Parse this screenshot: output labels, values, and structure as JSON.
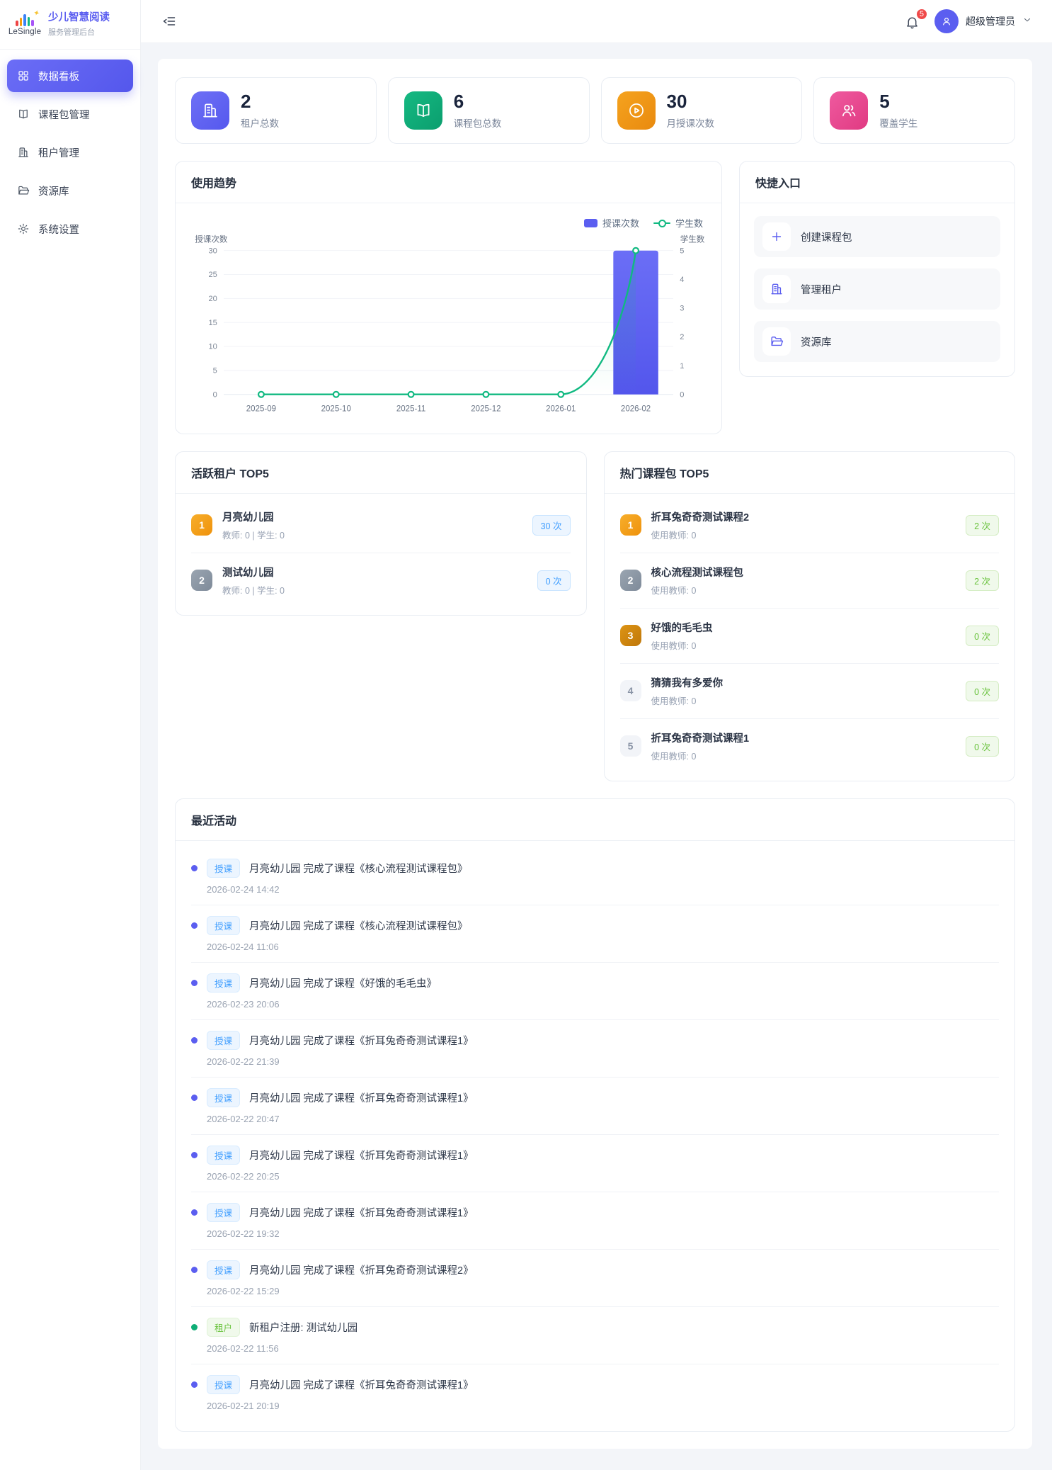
{
  "brand": {
    "logo_text": "LeSingle",
    "title": "少儿智慧阅读",
    "subtitle": "服务管理后台"
  },
  "header": {
    "notification_count": "5",
    "user_name": "超级管理员"
  },
  "sidebar": {
    "items": [
      {
        "label": "数据看板",
        "icon": "dashboard-icon",
        "active": true
      },
      {
        "label": "课程包管理",
        "icon": "book-icon",
        "active": false
      },
      {
        "label": "租户管理",
        "icon": "building-icon",
        "active": false
      },
      {
        "label": "资源库",
        "icon": "folder-icon",
        "active": false
      },
      {
        "label": "系统设置",
        "icon": "gear-icon",
        "active": false
      }
    ]
  },
  "stats": {
    "cards": [
      {
        "value": "2",
        "label": "租户总数",
        "icon": "building-icon",
        "color": "#5b5ef0"
      },
      {
        "value": "6",
        "label": "课程包总数",
        "icon": "book-icon",
        "color": "#10a873"
      },
      {
        "value": "30",
        "label": "月授课次数",
        "icon": "play-icon",
        "color": "#ef9712"
      },
      {
        "value": "5",
        "label": "覆盖学生",
        "icon": "users-icon",
        "color": "#e8488e"
      }
    ]
  },
  "usage_trend": {
    "title": "使用趋势",
    "legend": [
      "授课次数",
      "学生数"
    ]
  },
  "chart_data": {
    "type": "bar",
    "title": "使用趋势",
    "categories": [
      "2025-09",
      "2025-10",
      "2025-11",
      "2025-12",
      "2026-01",
      "2026-02"
    ],
    "series": [
      {
        "name": "授课次数",
        "type": "bar",
        "axis": "left",
        "values": [
          0,
          0,
          0,
          0,
          0,
          30
        ],
        "color": "#5b5ef0"
      },
      {
        "name": "学生数",
        "type": "line",
        "axis": "right",
        "values": [
          0,
          0,
          0,
          0,
          0,
          5
        ],
        "color": "#10b981"
      }
    ],
    "left_axis": {
      "name": "授课次数",
      "min": 0,
      "max": 30,
      "ticks": [
        0,
        5,
        10,
        15,
        20,
        25,
        30
      ]
    },
    "right_axis": {
      "name": "学生数",
      "min": 0,
      "max": 5,
      "ticks": [
        0,
        1,
        2,
        3,
        4,
        5
      ]
    },
    "grid": true,
    "legend_position": "top-right"
  },
  "quick_entry": {
    "title": "快捷入口",
    "items": [
      {
        "label": "创建课程包",
        "icon": "plus-icon"
      },
      {
        "label": "管理租户",
        "icon": "building-icon"
      },
      {
        "label": "资源库",
        "icon": "folder-icon"
      }
    ]
  },
  "active_tenants": {
    "title": "活跃租户 TOP5",
    "items": [
      {
        "rank": "1",
        "name": "月亮幼儿园",
        "meta": "教师: 0 | 学生: 0",
        "count": "30 次"
      },
      {
        "rank": "2",
        "name": "测试幼儿园",
        "meta": "教师: 0 | 学生: 0",
        "count": "0 次"
      }
    ]
  },
  "hot_packages": {
    "title": "热门课程包 TOP5",
    "items": [
      {
        "rank": "1",
        "name": "折耳兔奇奇测试课程2",
        "meta": "使用教师: 0",
        "count": "2 次"
      },
      {
        "rank": "2",
        "name": "核心流程测试课程包",
        "meta": "使用教师: 0",
        "count": "2 次"
      },
      {
        "rank": "3",
        "name": "好饿的毛毛虫",
        "meta": "使用教师: 0",
        "count": "0 次"
      },
      {
        "rank": "4",
        "name": "猜猜我有多爱你",
        "meta": "使用教师: 0",
        "count": "0 次"
      },
      {
        "rank": "5",
        "name": "折耳兔奇奇测试课程1",
        "meta": "使用教师: 0",
        "count": "0 次"
      }
    ]
  },
  "recent_activity": {
    "title": "最近活动",
    "items": [
      {
        "tag": "授课",
        "type": "lesson",
        "text": "月亮幼儿园 完成了课程《核心流程测试课程包》",
        "time": "2026-02-24 14:42"
      },
      {
        "tag": "授课",
        "type": "lesson",
        "text": "月亮幼儿园 完成了课程《核心流程测试课程包》",
        "time": "2026-02-24 11:06"
      },
      {
        "tag": "授课",
        "type": "lesson",
        "text": "月亮幼儿园 完成了课程《好饿的毛毛虫》",
        "time": "2026-02-23 20:06"
      },
      {
        "tag": "授课",
        "type": "lesson",
        "text": "月亮幼儿园 完成了课程《折耳兔奇奇测试课程1》",
        "time": "2026-02-22 21:39"
      },
      {
        "tag": "授课",
        "type": "lesson",
        "text": "月亮幼儿园 完成了课程《折耳兔奇奇测试课程1》",
        "time": "2026-02-22 20:47"
      },
      {
        "tag": "授课",
        "type": "lesson",
        "text": "月亮幼儿园 完成了课程《折耳兔奇奇测试课程1》",
        "time": "2026-02-22 20:25"
      },
      {
        "tag": "授课",
        "type": "lesson",
        "text": "月亮幼儿园 完成了课程《折耳兔奇奇测试课程1》",
        "time": "2026-02-22 19:32"
      },
      {
        "tag": "授课",
        "type": "lesson",
        "text": "月亮幼儿园 完成了课程《折耳兔奇奇测试课程2》",
        "time": "2026-02-22 15:29"
      },
      {
        "tag": "租户",
        "type": "tenant",
        "text": "新租户注册: 测试幼儿园",
        "time": "2026-02-22 11:56"
      },
      {
        "tag": "授课",
        "type": "lesson",
        "text": "月亮幼儿园 完成了课程《折耳兔奇奇测试课程1》",
        "time": "2026-02-21 20:19"
      }
    ]
  },
  "colors": {
    "primary": "#5b5ef0",
    "line_series": "#10b981",
    "bar_series": "#5b5ef0",
    "tag_blue": "#409eff",
    "tag_green": "#67c23a",
    "badge_red": "#f04a4a"
  }
}
